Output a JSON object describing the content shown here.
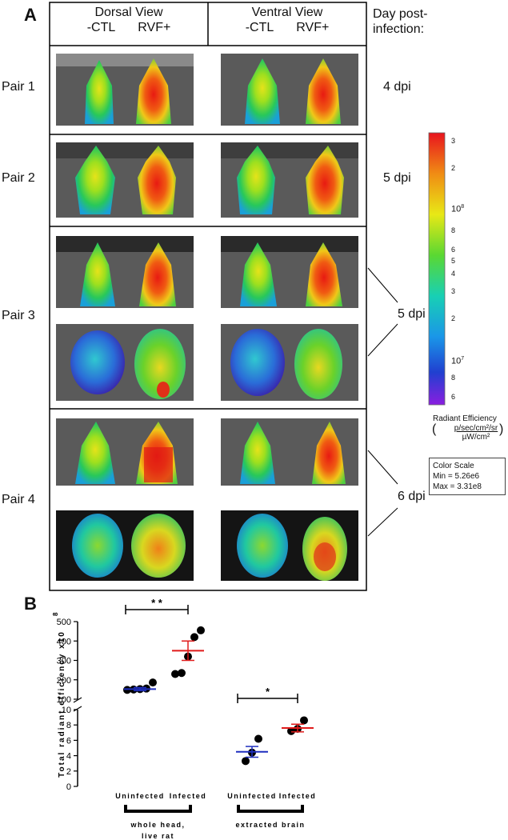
{
  "panelA": {
    "letter": "A",
    "headers": {
      "dorsal": "Dorsal View",
      "ventral": "Ventral View",
      "ctl": "-CTL",
      "rvf": "RVF+",
      "day_line1": "Day post-",
      "day_line2": "infection:"
    },
    "rows": [
      {
        "label": "Pair 1",
        "dpi": "4 dpi"
      },
      {
        "label": "Pair 2",
        "dpi": "5 dpi"
      },
      {
        "label": "Pair 3",
        "dpi": "5 dpi"
      },
      {
        "label": "Pair 4",
        "dpi": "6 dpi"
      }
    ],
    "colorbar": {
      "ticks": [
        "3",
        "2",
        "10^8",
        "8",
        "6",
        "5",
        "4",
        "3",
        "2",
        "10^7",
        "8",
        "6"
      ],
      "title": "Radiant Efficiency",
      "unit_num": "p/sec/cm²/sr",
      "unit_den": "µW/cm²",
      "scale_title": "Color Scale",
      "scale_min": "Min = 5.26e6",
      "scale_max": "Max = 3.31e8"
    }
  },
  "panelB": {
    "letter": "B",
    "chart_data": {
      "type": "scatter",
      "ylabel": "Total radiant efficiency x10",
      "ylabel_exp": "8",
      "y_upper": {
        "ticks": [
          100,
          200,
          300,
          400,
          500
        ],
        "range": [
          100,
          500
        ]
      },
      "y_lower": {
        "ticks": [
          0,
          2,
          4,
          6,
          8,
          10
        ],
        "range": [
          0,
          10
        ]
      },
      "categories": [
        "Uninfected",
        "Infected",
        "Uninfected",
        "Infected"
      ],
      "groups": [
        {
          "category": "Uninfected",
          "segment": "upper",
          "mean": 152,
          "sem_low": 144,
          "sem_high": 160,
          "points": [
            148,
            150,
            152,
            155,
            186
          ],
          "color": "#1f2fbf"
        },
        {
          "category": "Infected",
          "segment": "upper",
          "mean": 350,
          "sem_low": 300,
          "sem_high": 400,
          "points": [
            230,
            235,
            320,
            420,
            455
          ],
          "color": "#e01b1b"
        },
        {
          "category": "Uninfected",
          "segment": "lower",
          "mean": 4.5,
          "sem_low": 3.8,
          "sem_high": 5.2,
          "points": [
            3.3,
            4.4,
            6.2
          ],
          "color": "#1f2fbf"
        },
        {
          "category": "Infected",
          "segment": "lower",
          "mean": 7.6,
          "sem_low": 7.1,
          "sem_high": 8.1,
          "points": [
            7.2,
            7.5,
            8.6
          ],
          "color": "#e01b1b"
        }
      ],
      "significance": [
        {
          "label": "* *",
          "between": [
            0,
            1
          ]
        },
        {
          "label": "*",
          "between": [
            2,
            3
          ]
        }
      ],
      "group_labels": [
        {
          "line1": "whole head,",
          "line2": "live rat"
        },
        {
          "line1": "extracted brain",
          "line2": ""
        }
      ]
    }
  }
}
